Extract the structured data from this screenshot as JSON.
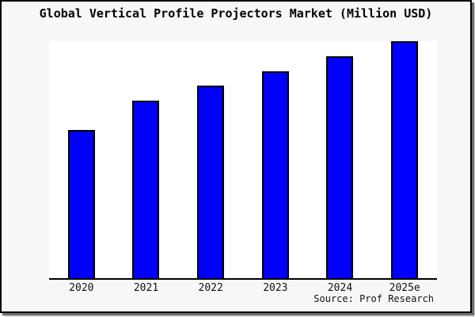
{
  "chart_data": {
    "type": "bar",
    "title": "Global Vertical Profile Projectors Market (Million USD)",
    "unit": "Million USD",
    "categories": [
      "2020",
      "2021",
      "2022",
      "2023",
      "2024",
      "2025e"
    ],
    "values_relative_pct": [
      62.5,
      74.9,
      81.3,
      87.3,
      93.6,
      100
    ],
    "value_axis_labels_visible": false,
    "grid": false,
    "legend_position": "none",
    "bar_color": "#0000ff",
    "bar_edge_color": "#000000",
    "xlabel": "",
    "ylabel": "",
    "source_note": "Source: Prof Research"
  },
  "frame": {
    "background": "#f7f7f7",
    "plot_background": "#ffffff",
    "border_color": "#000000"
  }
}
